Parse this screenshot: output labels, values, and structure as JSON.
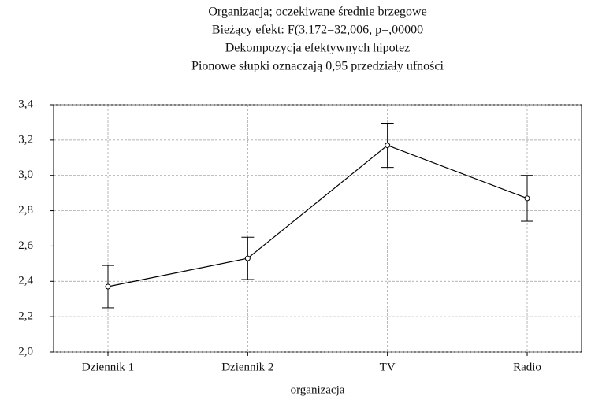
{
  "chart_data": {
    "type": "line",
    "title_lines": [
      "Organizacja; oczekiwane średnie brzegowe",
      "Bieżący efekt: F(3,172=32,006, p=,00000",
      "Dekompozycja efektywnych hipotez",
      "Pionowe słupki oznaczają 0,95 przedziały ufności"
    ],
    "x_label": "organizacja",
    "categories": [
      "Dziennik 1",
      "Dziennik 2",
      "TV",
      "Radio"
    ],
    "series": [
      {
        "color": "#000000",
        "values": [
          2.37,
          2.53,
          3.17,
          2.87
        ],
        "errors": [
          0.12,
          0.12,
          0.125,
          0.13
        ]
      }
    ],
    "ylim": [
      2.0,
      3.4
    ],
    "yticks": [
      {
        "value": 2.0,
        "label": "2,0"
      },
      {
        "value": 2.2,
        "label": "2,2"
      },
      {
        "value": 2.4,
        "label": "2,4"
      },
      {
        "value": 2.6,
        "label": "2,6"
      },
      {
        "value": 2.8,
        "label": "2,8"
      },
      {
        "value": 3.0,
        "label": "3,0"
      },
      {
        "value": 3.2,
        "label": "3,2"
      },
      {
        "value": 3.4,
        "label": "3,4"
      }
    ],
    "grid": true
  }
}
